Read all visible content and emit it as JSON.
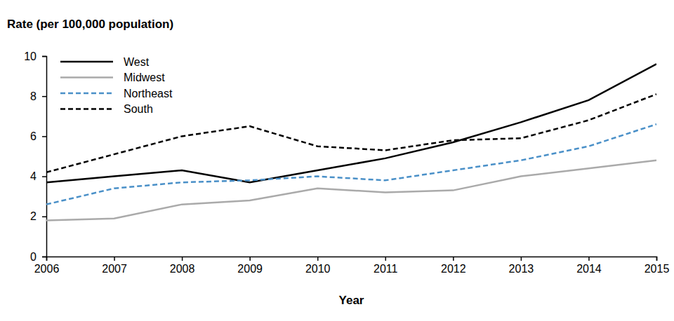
{
  "chart_data": {
    "type": "line",
    "x_label": "Year",
    "y_label": "Rate (per 100,000 population)",
    "x": [
      2006,
      2007,
      2008,
      2009,
      2010,
      2011,
      2012,
      2013,
      2014,
      2015
    ],
    "xlim": [
      2006,
      2015
    ],
    "xticks": [
      2006,
      2007,
      2008,
      2009,
      2010,
      2011,
      2012,
      2013,
      2014,
      2015
    ],
    "ylim": [
      0,
      10
    ],
    "yticks": [
      0,
      2,
      4,
      6,
      8,
      10
    ],
    "grid": false,
    "legend": "upper left",
    "series": [
      {
        "name": "West",
        "color": "#000000",
        "line_style": "solid",
        "values": [
          3.7,
          4.0,
          4.3,
          3.7,
          4.3,
          4.9,
          5.7,
          6.7,
          7.8,
          9.6
        ]
      },
      {
        "name": "Midwest",
        "color": "#aaaaaa",
        "line_style": "solid",
        "values": [
          1.8,
          1.9,
          2.6,
          2.8,
          3.4,
          3.2,
          3.3,
          4.0,
          4.4,
          4.8
        ]
      },
      {
        "name": "Northeast",
        "color": "#4a90c8",
        "line_style": "dashed",
        "values": [
          2.6,
          3.4,
          3.7,
          3.8,
          4.0,
          3.8,
          4.3,
          4.8,
          5.5,
          6.6
        ]
      },
      {
        "name": "South",
        "color": "#000000",
        "line_style": "dashed",
        "values": [
          4.2,
          5.1,
          6.0,
          6.5,
          5.5,
          5.3,
          5.8,
          5.9,
          6.8,
          8.1
        ]
      }
    ]
  }
}
